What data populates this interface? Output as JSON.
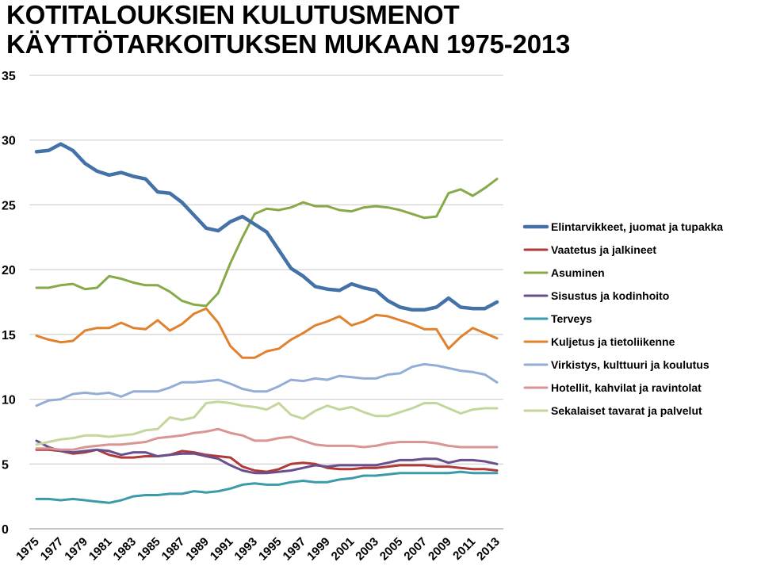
{
  "chart_data": {
    "type": "line",
    "title_lines": [
      "KOTITALOUKSIEN KULUTUSMENOT",
      "KÄYTTÖTARKOITUKSEN MUKAAN 1975-2013"
    ],
    "xlabel": "",
    "ylabel": "",
    "ylim": [
      0,
      35
    ],
    "yticks": [
      0,
      5,
      10,
      15,
      20,
      25,
      30,
      35
    ],
    "x": [
      1975,
      1976,
      1977,
      1978,
      1979,
      1980,
      1981,
      1982,
      1983,
      1984,
      1985,
      1986,
      1987,
      1988,
      1989,
      1990,
      1991,
      1992,
      1993,
      1994,
      1995,
      1996,
      1997,
      1998,
      1999,
      2000,
      2001,
      2002,
      2003,
      2004,
      2005,
      2006,
      2007,
      2008,
      2009,
      2010,
      2011,
      2012,
      2013
    ],
    "xtick_labels": [
      "1975",
      "1977",
      "1979",
      "1981",
      "1983",
      "1985",
      "1987",
      "1989",
      "1991",
      "1993",
      "1995",
      "1997",
      "1999",
      "2001",
      "2003",
      "2005",
      "2007",
      "2009",
      "2011",
      "2013"
    ],
    "grid": true,
    "legend_position": "right",
    "series": [
      {
        "name": "Elintarvikkeet, juomat ja tupakka",
        "color": "#4472A8",
        "width": 4.5,
        "values": [
          29.1,
          29.2,
          29.7,
          29.2,
          28.2,
          27.6,
          27.3,
          27.5,
          27.2,
          27.0,
          26.0,
          25.9,
          25.2,
          24.2,
          23.2,
          23.0,
          23.7,
          24.1,
          23.5,
          22.9,
          21.5,
          20.1,
          19.5,
          18.7,
          18.5,
          18.4,
          18.9,
          18.6,
          18.4,
          17.6,
          17.1,
          16.9,
          16.9,
          17.1,
          17.8,
          17.1,
          17.0,
          17.0,
          17.5
        ]
      },
      {
        "name": "Vaatetus ja jalkineet",
        "color": "#B03A37",
        "width": 3,
        "values": [
          6.1,
          6.1,
          6.0,
          5.8,
          5.9,
          6.1,
          5.7,
          5.5,
          5.5,
          5.6,
          5.6,
          5.7,
          6.0,
          5.9,
          5.7,
          5.6,
          5.5,
          4.8,
          4.5,
          4.4,
          4.6,
          5.0,
          5.1,
          5.0,
          4.7,
          4.6,
          4.6,
          4.7,
          4.7,
          4.8,
          4.9,
          4.9,
          4.9,
          4.8,
          4.8,
          4.7,
          4.6,
          4.6,
          4.5
        ]
      },
      {
        "name": "Asuminen",
        "color": "#86AA47",
        "width": 3,
        "values": [
          18.6,
          18.6,
          18.8,
          18.9,
          18.5,
          18.6,
          19.5,
          19.3,
          19.0,
          18.8,
          18.8,
          18.3,
          17.6,
          17.3,
          17.2,
          18.2,
          20.5,
          22.5,
          24.3,
          24.7,
          24.6,
          24.8,
          25.2,
          24.9,
          24.9,
          24.6,
          24.5,
          24.8,
          24.9,
          24.8,
          24.6,
          24.3,
          24.0,
          24.1,
          25.9,
          26.2,
          25.7,
          26.3,
          27.0
        ]
      },
      {
        "name": "Sisustus ja kodinhoito",
        "color": "#6A4F8E",
        "width": 3,
        "values": [
          6.8,
          6.3,
          6.0,
          5.9,
          6.0,
          6.1,
          6.0,
          5.7,
          5.9,
          5.9,
          5.6,
          5.7,
          5.8,
          5.8,
          5.6,
          5.4,
          4.9,
          4.5,
          4.3,
          4.3,
          4.4,
          4.5,
          4.7,
          4.9,
          4.8,
          4.9,
          4.9,
          4.9,
          4.9,
          5.1,
          5.3,
          5.3,
          5.4,
          5.4,
          5.1,
          5.3,
          5.3,
          5.2,
          5.0
        ]
      },
      {
        "name": "Terveys",
        "color": "#3D9AAB",
        "width": 3,
        "values": [
          2.3,
          2.3,
          2.2,
          2.3,
          2.2,
          2.1,
          2.0,
          2.2,
          2.5,
          2.6,
          2.6,
          2.7,
          2.7,
          2.9,
          2.8,
          2.9,
          3.1,
          3.4,
          3.5,
          3.4,
          3.4,
          3.6,
          3.7,
          3.6,
          3.6,
          3.8,
          3.9,
          4.1,
          4.1,
          4.2,
          4.3,
          4.3,
          4.3,
          4.3,
          4.3,
          4.4,
          4.3,
          4.3,
          4.3
        ]
      },
      {
        "name": "Kuljetus ja tietoliikenne",
        "color": "#E0812E",
        "width": 3,
        "values": [
          14.9,
          14.6,
          14.4,
          14.5,
          15.3,
          15.5,
          15.5,
          15.9,
          15.5,
          15.4,
          16.1,
          15.3,
          15.8,
          16.6,
          17.0,
          15.9,
          14.1,
          13.2,
          13.2,
          13.7,
          13.9,
          14.6,
          15.1,
          15.7,
          16.0,
          16.4,
          15.7,
          16.0,
          16.5,
          16.4,
          16.1,
          15.8,
          15.4,
          15.4,
          13.9,
          14.8,
          15.5,
          15.1,
          14.7
        ]
      },
      {
        "name": "Virkistys, kulttuuri ja koulutus",
        "color": "#93AED6",
        "width": 3,
        "values": [
          9.5,
          9.9,
          10.0,
          10.4,
          10.5,
          10.4,
          10.5,
          10.2,
          10.6,
          10.6,
          10.6,
          10.9,
          11.3,
          11.3,
          11.4,
          11.5,
          11.2,
          10.8,
          10.6,
          10.6,
          11.0,
          11.5,
          11.4,
          11.6,
          11.5,
          11.8,
          11.7,
          11.6,
          11.6,
          11.9,
          12.0,
          12.5,
          12.7,
          12.6,
          12.4,
          12.2,
          12.1,
          11.9,
          11.3
        ]
      },
      {
        "name": "Hotellit, kahvilat ja ravintolat",
        "color": "#D99594",
        "width": 3,
        "values": [
          6.2,
          6.2,
          6.1,
          6.1,
          6.3,
          6.4,
          6.5,
          6.5,
          6.6,
          6.7,
          7.0,
          7.1,
          7.2,
          7.4,
          7.5,
          7.7,
          7.4,
          7.2,
          6.8,
          6.8,
          7.0,
          7.1,
          6.8,
          6.5,
          6.4,
          6.4,
          6.4,
          6.3,
          6.4,
          6.6,
          6.7,
          6.7,
          6.7,
          6.6,
          6.4,
          6.3,
          6.3,
          6.3,
          6.3
        ]
      },
      {
        "name": "Sekalaiset tavarat ja palvelut",
        "color": "#C3D69B",
        "width": 3,
        "values": [
          6.5,
          6.7,
          6.9,
          7.0,
          7.2,
          7.2,
          7.1,
          7.2,
          7.3,
          7.6,
          7.7,
          8.6,
          8.4,
          8.6,
          9.7,
          9.8,
          9.7,
          9.5,
          9.4,
          9.2,
          9.7,
          8.8,
          8.5,
          9.1,
          9.5,
          9.2,
          9.4,
          9.0,
          8.7,
          8.7,
          9.0,
          9.3,
          9.7,
          9.7,
          9.3,
          8.9,
          9.2,
          9.3,
          9.3
        ]
      }
    ]
  }
}
